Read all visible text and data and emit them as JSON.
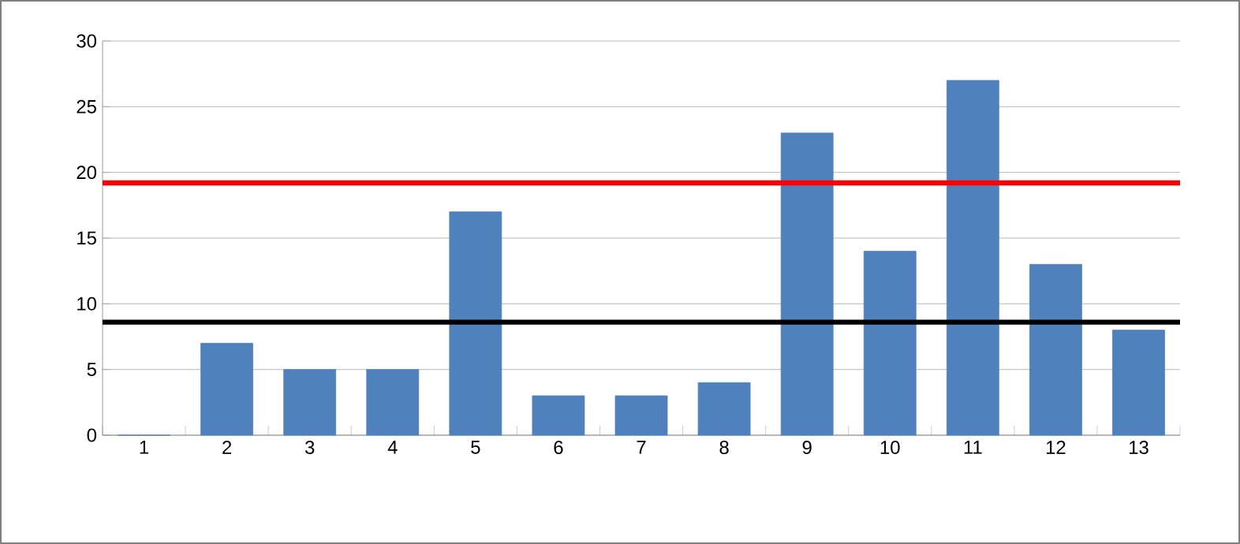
{
  "chart_data": {
    "type": "bar",
    "categories": [
      "1",
      "2",
      "3",
      "4",
      "5",
      "6",
      "7",
      "8",
      "9",
      "10",
      "11",
      "12",
      "13"
    ],
    "values": [
      0,
      7,
      5,
      5,
      17,
      3,
      3,
      4,
      23,
      14,
      27,
      13,
      8
    ],
    "color": "#4f81bd",
    "ylim": [
      0,
      30
    ],
    "yticks": [
      0,
      5,
      10,
      15,
      20,
      25,
      30
    ],
    "grid": "y",
    "ref_lines": [
      {
        "axis": "y",
        "value": 19.2,
        "color": "#ff0000"
      },
      {
        "axis": "y",
        "value": 8.6,
        "color": "#000000"
      }
    ]
  }
}
